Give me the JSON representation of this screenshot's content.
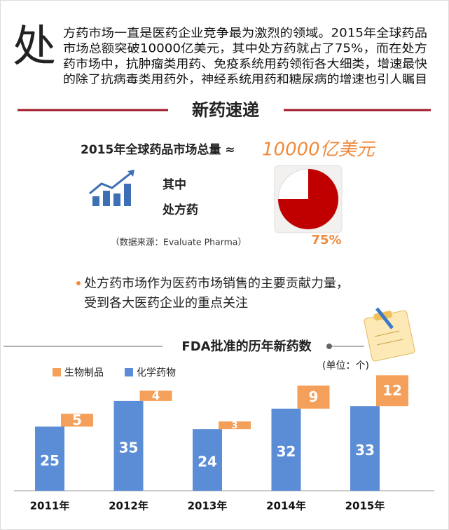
{
  "intro": {
    "drop_cap": "处",
    "lines": [
      "方药市场一直是医药企业竞争最为激烈的领域。2015年全球药品",
      "市场总额突破10000亿美元，其中处方药就占了75%，而在处方",
      "药市场中，抗肿瘤类用药、免疫系统用药领衔各大细类，增速最快",
      "的除了抗病毒类用药外，神经系统用药和糖尿病的增速也引人瞩目"
    ]
  },
  "section_title": "新药速递",
  "market": {
    "headline": "2015年全球药品市场总量 ≈",
    "amount": "10000亿美元",
    "label_1": "其中",
    "label_2": "处方药",
    "source": "（数据来源：Evaluate Pharma）"
  },
  "note": {
    "lines": [
      "处方药市场作为医药市场销售的主要贡献力量，",
      "受到各大医药企业的重点关注"
    ]
  },
  "chart_data": [
    {
      "type": "pie",
      "values": [
        75
      ],
      "value_labels": [
        "75%"
      ],
      "color": "#c00000"
    },
    {
      "type": "bar",
      "title": "FDA批准的历年新药数",
      "unit": "(单位：个)",
      "categories": [
        "2011年",
        "2012年",
        "2013年",
        "2014年",
        "2015年"
      ],
      "stacked": true,
      "series": [
        {
          "name": "化学药物",
          "color": "#5b8dd6",
          "values": [
            25,
            35,
            24,
            32,
            33
          ]
        },
        {
          "name": "生物制品",
          "color": "#f5a05a",
          "values": [
            5,
            4,
            3,
            9,
            12
          ]
        }
      ]
    }
  ]
}
